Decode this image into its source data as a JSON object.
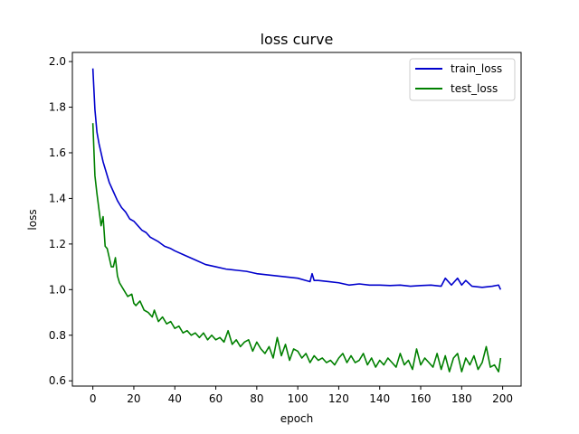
{
  "chart_data": {
    "type": "line",
    "title": "loss curve",
    "xlabel": "epoch",
    "ylabel": "loss",
    "xlim": [
      -10,
      209
    ],
    "ylim": [
      0.577,
      2.04
    ],
    "xticks": [
      0,
      20,
      40,
      60,
      80,
      100,
      120,
      140,
      160,
      180,
      200
    ],
    "yticks": [
      0.6,
      0.8,
      1.0,
      1.2,
      1.4,
      1.6,
      1.8,
      2.0
    ],
    "ytick_labels": [
      "0.6",
      "0.8",
      "1.0",
      "1.2",
      "1.4",
      "1.6",
      "1.8",
      "2.0"
    ],
    "grid": false,
    "legend_position": "top-right",
    "series": [
      {
        "name": "train_loss",
        "color": "#0000cc",
        "x": [
          0,
          1,
          2,
          3,
          4,
          5,
          6,
          8,
          10,
          12,
          14,
          16,
          18,
          20,
          22,
          24,
          26,
          28,
          30,
          32,
          35,
          38,
          40,
          45,
          50,
          55,
          60,
          65,
          70,
          75,
          80,
          85,
          90,
          95,
          100,
          104,
          106,
          107,
          108,
          110,
          115,
          120,
          125,
          130,
          135,
          140,
          145,
          150,
          155,
          160,
          165,
          170,
          172,
          175,
          178,
          180,
          182,
          185,
          190,
          195,
          198,
          199
        ],
        "values": [
          1.97,
          1.79,
          1.69,
          1.64,
          1.6,
          1.56,
          1.53,
          1.47,
          1.43,
          1.39,
          1.36,
          1.34,
          1.31,
          1.3,
          1.28,
          1.26,
          1.25,
          1.23,
          1.22,
          1.21,
          1.19,
          1.18,
          1.17,
          1.15,
          1.13,
          1.11,
          1.1,
          1.09,
          1.085,
          1.08,
          1.07,
          1.065,
          1.06,
          1.055,
          1.05,
          1.04,
          1.035,
          1.07,
          1.04,
          1.04,
          1.035,
          1.03,
          1.02,
          1.025,
          1.02,
          1.02,
          1.018,
          1.02,
          1.015,
          1.018,
          1.02,
          1.015,
          1.05,
          1.02,
          1.05,
          1.02,
          1.04,
          1.015,
          1.01,
          1.015,
          1.02,
          1.0
        ]
      },
      {
        "name": "test_loss",
        "color": "#008000",
        "x": [
          0,
          1,
          2,
          3,
          4,
          5,
          6,
          7,
          8,
          9,
          10,
          11,
          12,
          13,
          15,
          17,
          19,
          20,
          21,
          23,
          25,
          27,
          29,
          30,
          32,
          34,
          36,
          38,
          40,
          42,
          44,
          46,
          48,
          50,
          52,
          54,
          56,
          58,
          60,
          62,
          64,
          66,
          68,
          70,
          72,
          74,
          76,
          78,
          80,
          82,
          84,
          86,
          88,
          90,
          92,
          94,
          96,
          98,
          100,
          102,
          104,
          106,
          108,
          110,
          112,
          114,
          116,
          118,
          120,
          122,
          124,
          126,
          128,
          130,
          132,
          134,
          136,
          138,
          140,
          142,
          144,
          146,
          148,
          150,
          152,
          154,
          156,
          158,
          160,
          162,
          164,
          166,
          168,
          170,
          172,
          174,
          176,
          178,
          180,
          182,
          184,
          186,
          188,
          190,
          192,
          194,
          196,
          198,
          199
        ],
        "values": [
          1.73,
          1.5,
          1.42,
          1.35,
          1.28,
          1.32,
          1.19,
          1.18,
          1.14,
          1.1,
          1.1,
          1.14,
          1.06,
          1.03,
          1.0,
          0.97,
          0.98,
          0.94,
          0.93,
          0.95,
          0.91,
          0.9,
          0.88,
          0.91,
          0.86,
          0.88,
          0.85,
          0.86,
          0.83,
          0.84,
          0.81,
          0.82,
          0.8,
          0.81,
          0.79,
          0.81,
          0.78,
          0.8,
          0.78,
          0.79,
          0.77,
          0.82,
          0.76,
          0.78,
          0.75,
          0.77,
          0.78,
          0.73,
          0.77,
          0.74,
          0.72,
          0.75,
          0.7,
          0.79,
          0.71,
          0.76,
          0.69,
          0.74,
          0.73,
          0.7,
          0.72,
          0.68,
          0.71,
          0.69,
          0.7,
          0.68,
          0.69,
          0.67,
          0.7,
          0.72,
          0.68,
          0.71,
          0.68,
          0.69,
          0.72,
          0.67,
          0.7,
          0.66,
          0.69,
          0.67,
          0.7,
          0.68,
          0.66,
          0.72,
          0.67,
          0.69,
          0.65,
          0.74,
          0.67,
          0.7,
          0.68,
          0.66,
          0.72,
          0.65,
          0.71,
          0.64,
          0.7,
          0.72,
          0.64,
          0.7,
          0.67,
          0.71,
          0.65,
          0.68,
          0.75,
          0.66,
          0.67,
          0.64,
          0.7
        ]
      }
    ]
  }
}
